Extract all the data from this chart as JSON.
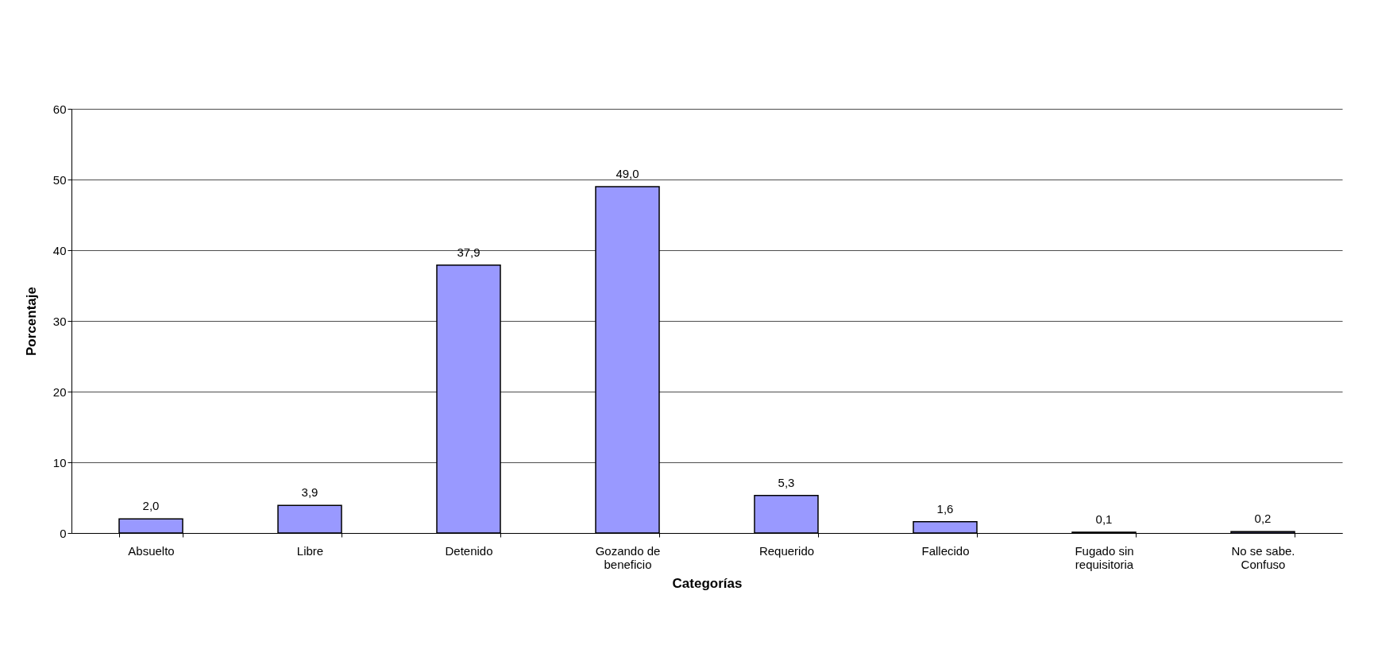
{
  "chart_data": {
    "type": "bar",
    "xlabel": "Categorías",
    "ylabel": "Porcentaje",
    "categories": [
      "Absuelto",
      "Libre",
      "Detenido",
      "Gozando de beneficio",
      "Requerido",
      "Fallecido",
      "Fugado sin requisitoria",
      "No se sabe. Confuso"
    ],
    "values": [
      2.0,
      3.9,
      37.9,
      49.0,
      5.3,
      1.6,
      0.1,
      0.2
    ],
    "value_labels": [
      "2,0",
      "3,9",
      "37,9",
      "49,0",
      "5,3",
      "1,6",
      "0,1",
      "0,2"
    ],
    "color": "#9999ff",
    "ylim": [
      0,
      60
    ],
    "yticks": [
      0,
      10,
      20,
      30,
      40,
      50,
      60
    ],
    "grid": "y"
  }
}
